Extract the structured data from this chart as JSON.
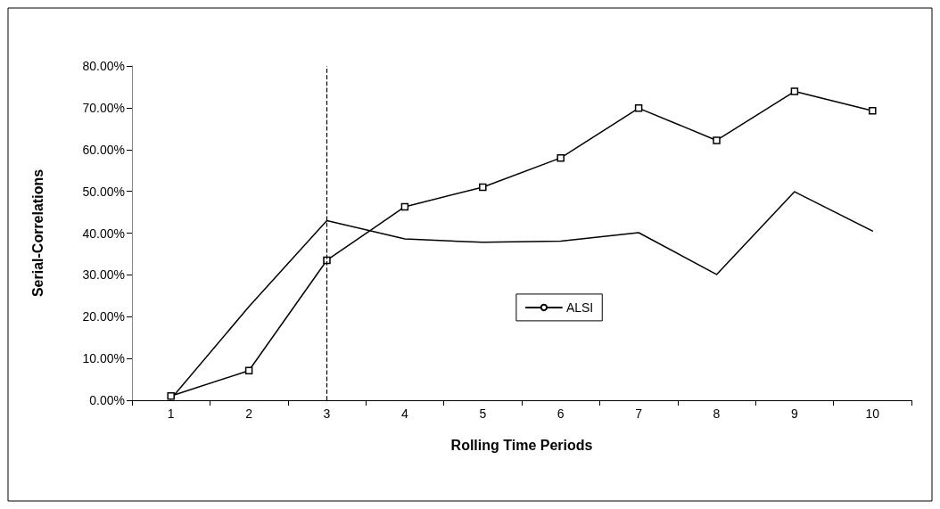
{
  "chart_data": {
    "type": "line",
    "xlabel": "Rolling Time Periods",
    "ylabel": "Serial-Correlations",
    "categories": [
      "1",
      "2",
      "3",
      "4",
      "5",
      "6",
      "7",
      "8",
      "9",
      "10"
    ],
    "series": [
      {
        "color": "#000000",
        "marker": "square",
        "values": [
          1.0,
          7.1,
          33.5,
          46.3,
          51.0,
          58.0,
          69.9,
          62.2,
          73.9,
          69.3
        ]
      },
      {
        "name": "ALSI",
        "color": "#000000",
        "marker": "none",
        "values": [
          0.3,
          22.4,
          43.0,
          38.6,
          37.8,
          38.1,
          40.1,
          30.1,
          49.9,
          40.5
        ]
      }
    ],
    "ylim": [
      0,
      80
    ],
    "yticks": [
      {
        "value": 0,
        "label": "0.00%"
      },
      {
        "value": 10,
        "label": "10.00%"
      },
      {
        "value": 20,
        "label": "20.00%"
      },
      {
        "value": 30,
        "label": "30.00%"
      },
      {
        "value": 40,
        "label": "40.00%"
      },
      {
        "value": 50,
        "label": "50.00%"
      },
      {
        "value": 60,
        "label": "60.00%"
      },
      {
        "value": 70,
        "label": "70.00%"
      },
      {
        "value": 80,
        "label": "80.00%"
      }
    ],
    "ref_lines": [
      {
        "axis": "x",
        "value": "3",
        "color": "#000000",
        "line_style": "dashed"
      }
    ],
    "grid": false,
    "legend": "center",
    "line_style": "solid"
  }
}
